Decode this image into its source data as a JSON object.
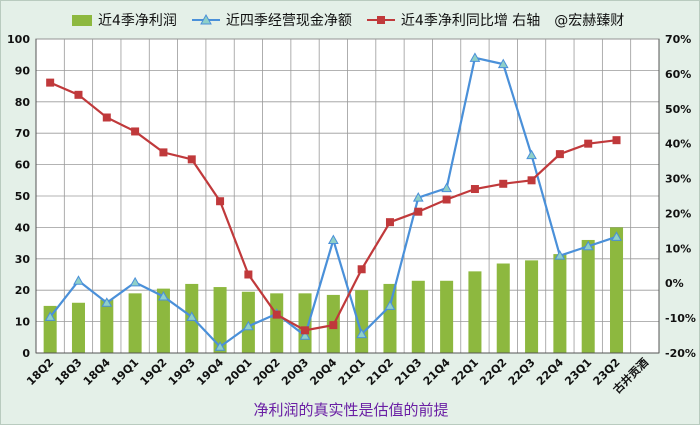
{
  "legend": {
    "bar": "近4季净利润",
    "cash": "近四季经营现金净额",
    "yoy": "近4季净利同比增 右轴",
    "watermark": "@宏赫臻财"
  },
  "colors": {
    "bar": "#8db83f",
    "cash": "#4a90d9",
    "yoy": "#c0393b",
    "plot_bg": "#ffffff",
    "grid": "#9a9a9a"
  },
  "chart_data": {
    "type": "bar+line",
    "title": "净利润的真实性是估值的前提",
    "categories": [
      "18Q2",
      "18Q3",
      "18Q4",
      "19Q1",
      "19Q2",
      "19Q3",
      "19Q4",
      "20Q1",
      "20Q2",
      "20Q3",
      "20Q4",
      "21Q1",
      "21Q2",
      "21Q3",
      "21Q4",
      "22Q1",
      "22Q2",
      "22Q3",
      "22Q4",
      "23Q1",
      "23Q2",
      "古井贡酒"
    ],
    "left_axis": {
      "min": 0,
      "max": 100,
      "ticks": [
        0,
        10,
        20,
        30,
        40,
        50,
        60,
        70,
        80,
        90,
        100
      ]
    },
    "right_axis": {
      "min": -20,
      "max": 70,
      "ticks": [
        "-20%",
        "-10%",
        "0%",
        "10%",
        "20%",
        "30%",
        "40%",
        "50%",
        "60%",
        "70%"
      ]
    },
    "series": [
      {
        "name": "近4季净利润",
        "type": "bar",
        "axis": "left",
        "values": [
          15,
          16,
          17,
          19,
          20.5,
          22,
          21,
          19.5,
          19,
          19,
          18.5,
          20,
          22,
          23,
          23,
          26,
          28.5,
          29.5,
          31.5,
          36,
          40,
          null
        ]
      },
      {
        "name": "近四季经营现金净额",
        "type": "line",
        "axis": "left",
        "values": [
          11.5,
          23,
          16,
          22.5,
          18,
          11.5,
          2,
          8.5,
          12.5,
          5.5,
          36,
          6,
          15,
          49.5,
          52.5,
          94,
          92,
          63,
          31,
          34,
          37,
          null
        ]
      },
      {
        "name": "近4季净利同比增 右轴",
        "type": "line",
        "axis": "right",
        "values": [
          57.5,
          54,
          47.5,
          43.5,
          37.5,
          35.5,
          23.5,
          2.5,
          -9,
          -13.5,
          -12,
          4,
          17.5,
          20.5,
          24,
          27,
          28.5,
          29.5,
          37,
          40,
          41,
          null
        ]
      }
    ]
  }
}
